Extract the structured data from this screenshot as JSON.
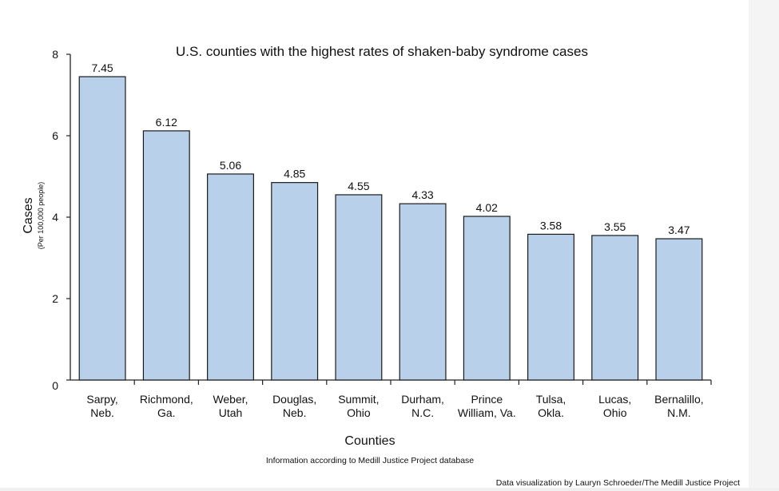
{
  "chart_data": {
    "type": "bar",
    "title": "U.S. counties with the highest rates of shaken-baby syndrome cases",
    "xlabel": "Counties",
    "ylabel": "Cases",
    "ylabel_sub": "(Per 100,000 people)",
    "ylim": [
      0,
      8
    ],
    "yticks": [
      0,
      2,
      4,
      6,
      8
    ],
    "grid": false,
    "bar_color": "#b8d0ea",
    "categories": [
      [
        "Sarpy,",
        "Neb."
      ],
      [
        "Richmond,",
        "Ga."
      ],
      [
        "Weber,",
        "Utah"
      ],
      [
        "Douglas,",
        "Neb."
      ],
      [
        "Summit,",
        "Ohio"
      ],
      [
        "Durham,",
        "N.C."
      ],
      [
        "Prince",
        "William, Va."
      ],
      [
        "Tulsa,",
        "Okla."
      ],
      [
        "Lucas,",
        "Ohio"
      ],
      [
        "Bernalillo,",
        "N.M."
      ]
    ],
    "values": [
      7.45,
      6.12,
      5.06,
      4.85,
      4.55,
      4.33,
      4.02,
      3.58,
      3.55,
      3.47
    ],
    "value_labels": [
      "7.45",
      "6.12",
      "5.06",
      "4.85",
      "4.55",
      "4.33",
      "4.02",
      "3.58",
      "3.55",
      "3.47"
    ]
  },
  "notes": {
    "source": "Information according to Medill Justice Project database",
    "credit": "Data visualization by Lauryn Schroeder/The Medill Justice Project"
  }
}
